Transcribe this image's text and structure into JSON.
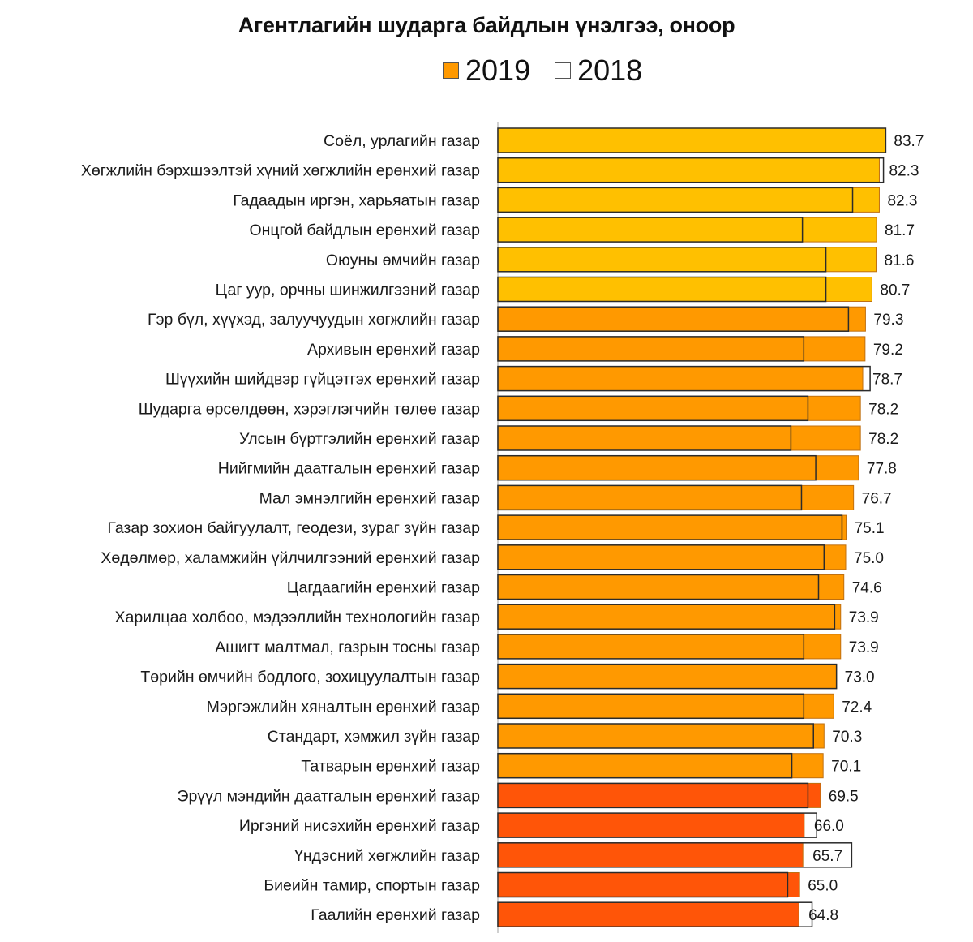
{
  "chart_data": {
    "type": "bar",
    "orientation": "horizontal",
    "title": "Агентлагийн шударга байдлын үнэлгээ, оноор",
    "xlabel": "",
    "ylabel": "",
    "xlim": [
      0,
      85
    ],
    "grid": false,
    "legend_position": "top-center",
    "legend": [
      {
        "name": "2019",
        "style": "filled",
        "color": "#FF9900"
      },
      {
        "name": "2018",
        "style": "outline",
        "color": "#FFFFFF"
      }
    ],
    "categories": [
      "Соёл, урлагийн газар",
      "Хөгжлийн бэрхшээлтэй хүний хөгжлийн ерөнхий газар",
      "Гадаадын иргэн, харьяатын газар",
      "Онцгой байдлын ерөнхий газар",
      "Оюуны өмчийн газар",
      "Цаг уур, орчны  шинжилгээний газар",
      "Гэр бүл, хүүхэд, залуучуудын хөгжлийн газар",
      "Архивын ерөнхий газар",
      "Шүүхийн шийдвэр гүйцэтгэх ерөнхий газар",
      "Шударга өрсөлдөөн, хэрэглэгчийн төлөө газар",
      "Улсын бүртгэлийн ерөнхий газар",
      "Нийгмийн даатгалын ерөнхий газар",
      "Мал эмнэлгийн ерөнхий газар",
      "Газар зохион байгуулалт, геодези, зураг зүйн газар",
      "Хөдөлмөр, халамжийн үйлчилгээний ерөнхий газар",
      "Цагдаагийн ерөнхий газар",
      "Харилцаа холбоо, мэдээллийн технологийн газар",
      "Ашигт малтмал, газрын тосны газар",
      "Төрийн өмчийн бодлого, зохицуулалтын газар",
      "Мэргэжлийн хяналтын ерөнхий газар",
      "Стандарт, хэмжил зүйн газар",
      "Татварын ерөнхий газар",
      "Эрүүл мэндийн даатгалын ерөнхий газар",
      "Иргэний нисэхийн ерөнхий газар",
      "Үндэсний хөгжлийн газар",
      "Биеийн тамир, спортын газар",
      "Гаалийн ерөнхий газар"
    ],
    "series": [
      {
        "name": "2019",
        "values": [
          83.7,
          82.3,
          82.3,
          81.7,
          81.6,
          80.7,
          79.3,
          79.2,
          78.7,
          78.2,
          78.2,
          77.8,
          76.7,
          75.1,
          75.0,
          74.6,
          73.9,
          73.9,
          73.0,
          72.4,
          70.3,
          70.1,
          69.5,
          66.0,
          65.7,
          65.0,
          64.8
        ],
        "labels": [
          "83.7",
          "82.3",
          "82.3",
          "81.7",
          "81.6",
          "80.7",
          "79.3",
          "79.2",
          "78.7",
          "78.2",
          "78.2",
          "77.8",
          "76.7",
          "75.1",
          "75.0",
          "74.6",
          "73.9",
          "73.9",
          "73.0",
          "72.4",
          "70.3",
          "70.1",
          "69.5",
          "66.0",
          "65.7",
          "65.0",
          "64.8"
        ],
        "color_tiers": [
          {
            "min": 80,
            "color": "#FFC000"
          },
          {
            "min": 70,
            "color": "#FF9900"
          },
          {
            "min": 0,
            "color": "#FF5508"
          }
        ]
      },
      {
        "name": "2018",
        "values": [
          83.7,
          83.2,
          76.5,
          65.6,
          70.7,
          70.7,
          75.6,
          65.9,
          80.3,
          66.8,
          63.1,
          68.5,
          65.4,
          74.2,
          70.3,
          69.1,
          72.6,
          65.9,
          73.0,
          65.9,
          68.0,
          63.3,
          66.8,
          68.7,
          76.3,
          62.4,
          67.7
        ],
        "estimated": true
      }
    ]
  }
}
